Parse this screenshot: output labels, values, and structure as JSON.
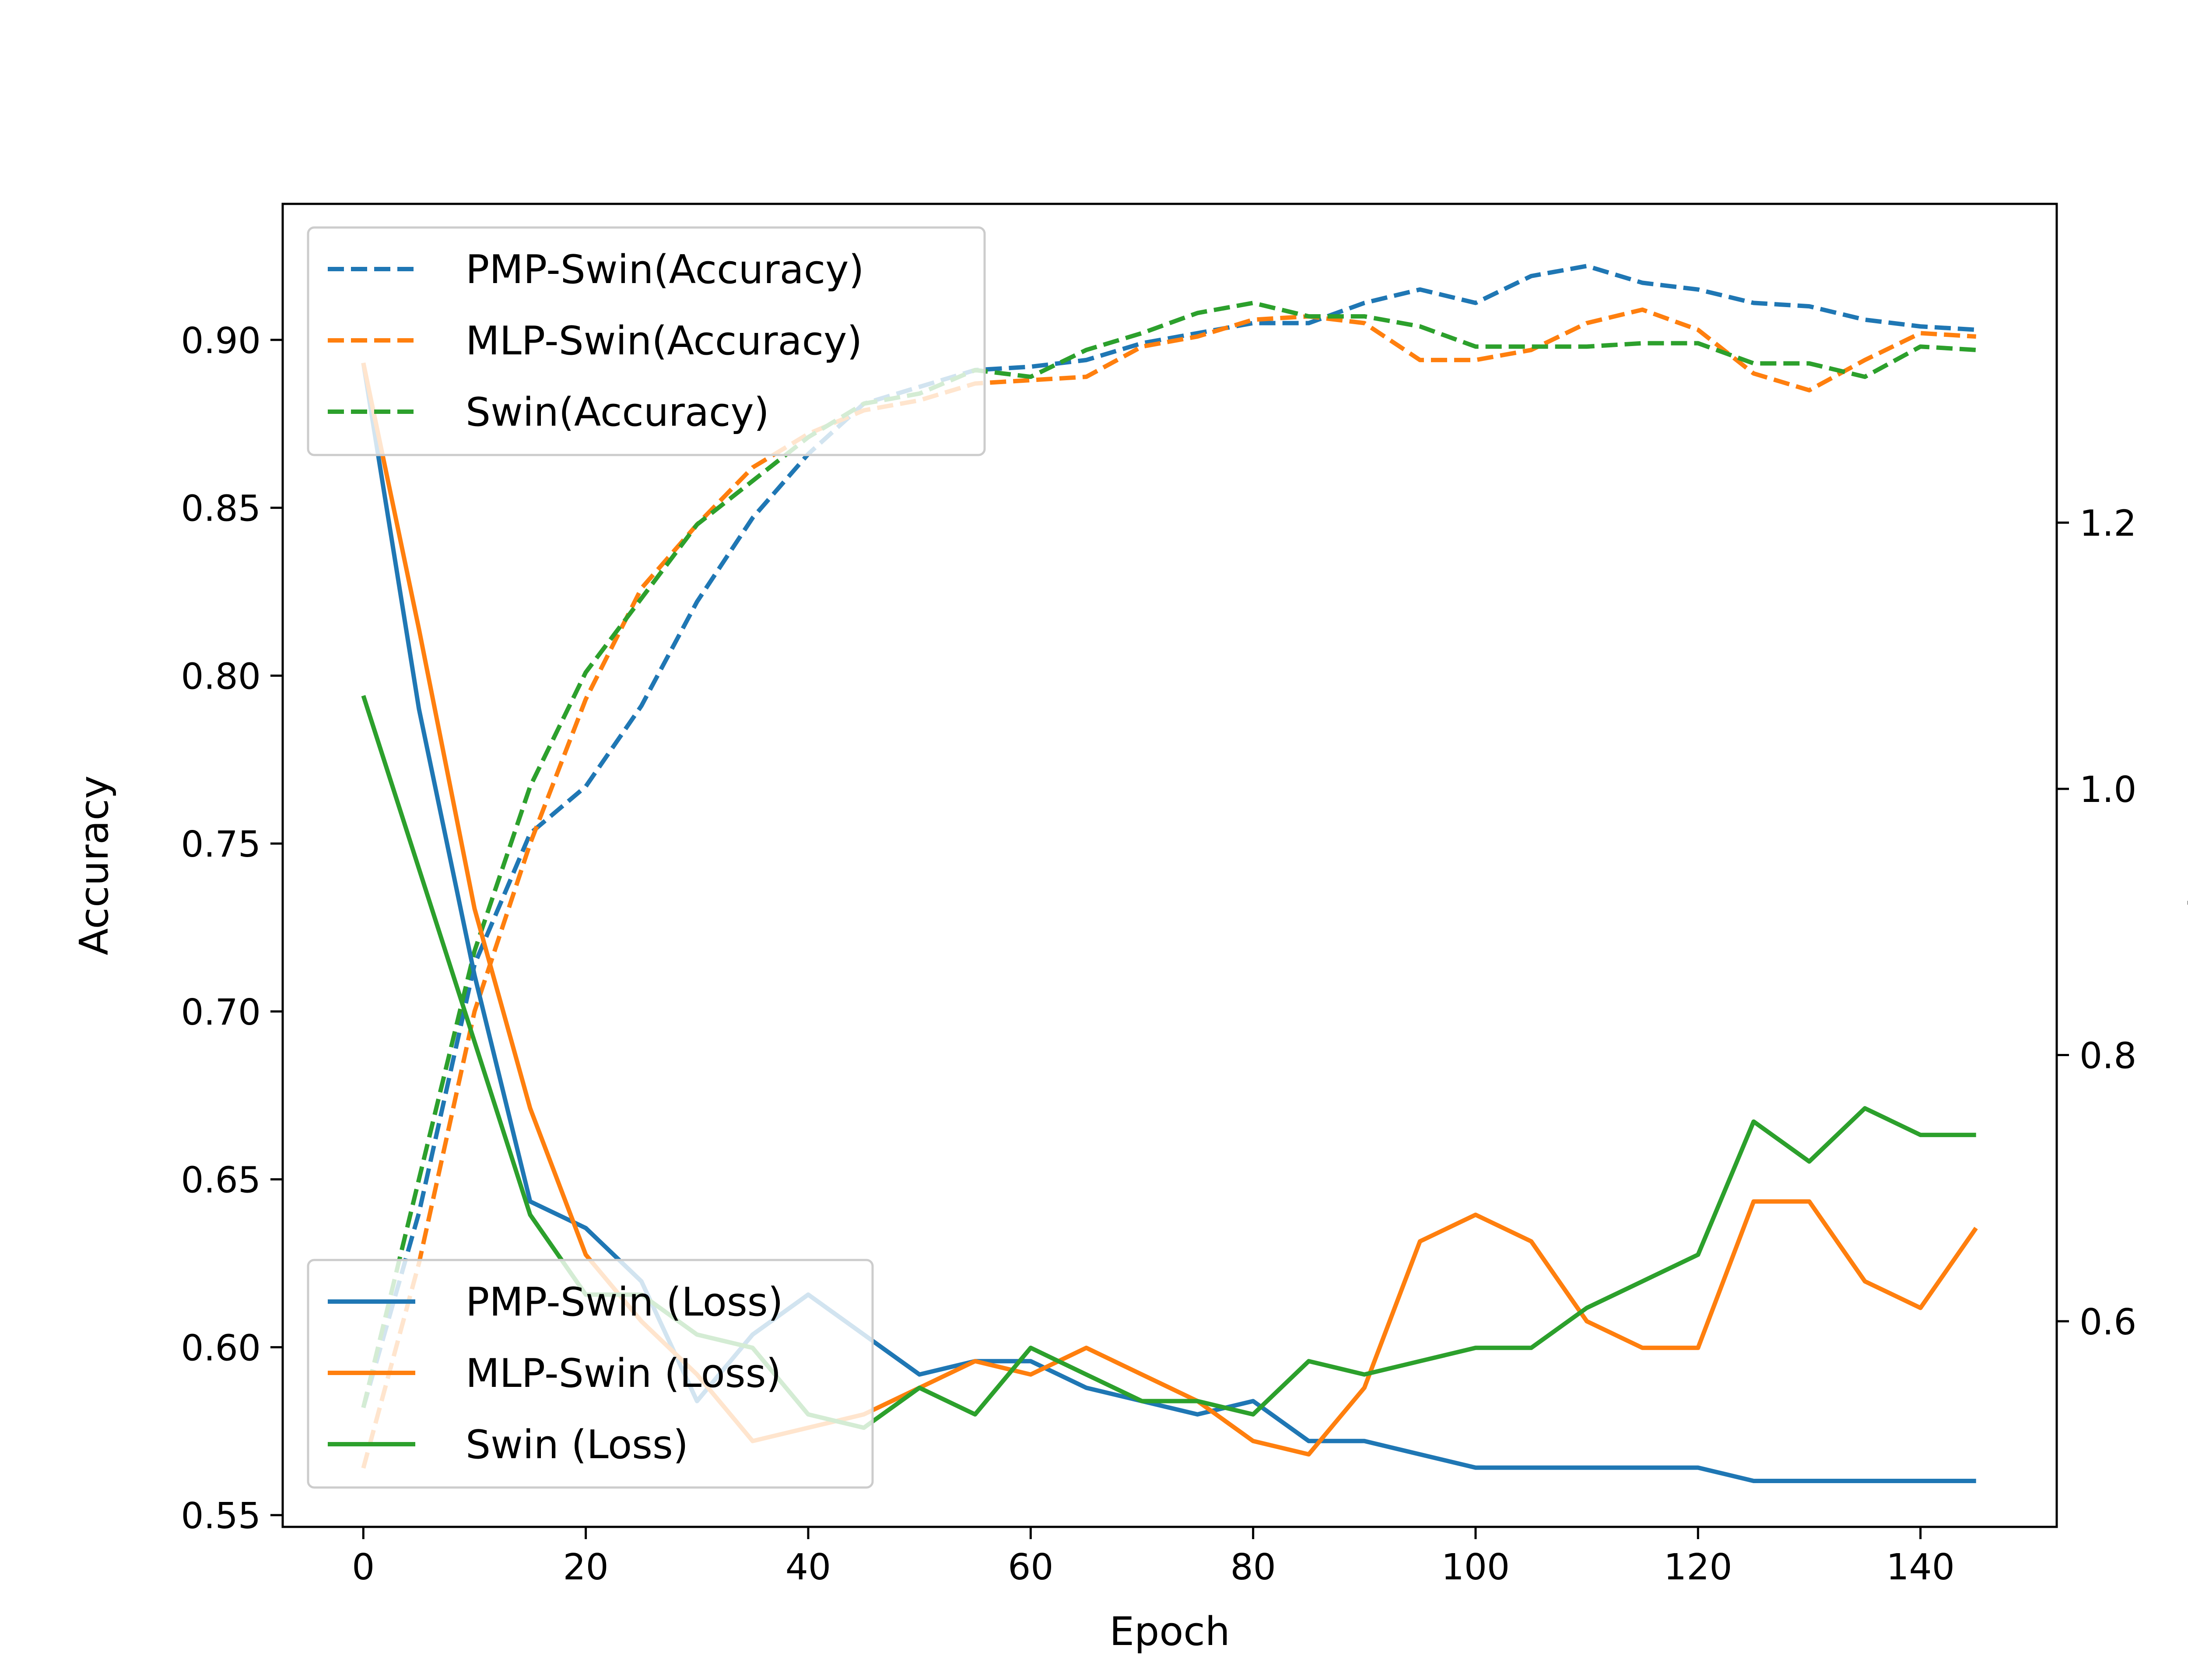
{
  "chart_data": {
    "type": "line",
    "xlabel": "Epoch",
    "ylabel_left": "Accuracy",
    "ylabel_right": "Loss",
    "xlim": [
      -7.25,
      152.25
    ],
    "ylim_left": [
      0.5465,
      0.9405
    ],
    "ylim_right": [
      0.4455,
      1.4395
    ],
    "xticks": [
      0,
      20,
      40,
      60,
      80,
      100,
      120,
      140
    ],
    "yticks_left": [
      0.55,
      0.6,
      0.65,
      0.7,
      0.75,
      0.8,
      0.85,
      0.9
    ],
    "yticks_right": [
      0.6,
      0.8,
      1.0,
      1.2
    ],
    "grid": false,
    "legend_accuracy_position": "upper left",
    "legend_loss_position": "lower left",
    "x": [
      0,
      5,
      10,
      15,
      20,
      25,
      30,
      35,
      40,
      45,
      50,
      55,
      60,
      65,
      70,
      75,
      80,
      85,
      90,
      95,
      100,
      105,
      110,
      115,
      120,
      125,
      130,
      135,
      140,
      145
    ],
    "series": [
      {
        "name": "PMP-Swin(Accuracy)",
        "axis": "left",
        "style": "dashed",
        "color": "#1f77b4",
        "values": [
          0.582,
          0.64,
          0.714,
          0.753,
          0.767,
          0.791,
          0.822,
          0.847,
          0.866,
          0.881,
          0.886,
          0.891,
          0.892,
          0.894,
          0.899,
          0.902,
          0.905,
          0.905,
          0.911,
          0.915,
          0.911,
          0.919,
          0.922,
          0.917,
          0.915,
          0.911,
          0.91,
          0.906,
          0.904,
          0.903
        ]
      },
      {
        "name": "MLP-Swin(Accuracy)",
        "axis": "left",
        "style": "dashed",
        "color": "#ff7f0e",
        "values": [
          0.564,
          0.625,
          0.7,
          0.75,
          0.793,
          0.826,
          0.845,
          0.862,
          0.872,
          0.879,
          0.882,
          0.887,
          0.888,
          0.889,
          0.898,
          0.901,
          0.906,
          0.907,
          0.905,
          0.894,
          0.894,
          0.897,
          0.905,
          0.909,
          0.903,
          0.89,
          0.885,
          0.894,
          0.902,
          0.901
        ]
      },
      {
        "name": "Swin(Accuracy)",
        "axis": "left",
        "style": "dashed",
        "color": "#2ca02c",
        "values": [
          0.582,
          0.65,
          0.718,
          0.767,
          0.801,
          0.823,
          0.845,
          0.858,
          0.871,
          0.881,
          0.884,
          0.891,
          0.889,
          0.897,
          0.902,
          0.908,
          0.911,
          0.907,
          0.907,
          0.904,
          0.898,
          0.898,
          0.898,
          0.899,
          0.899,
          0.893,
          0.893,
          0.889,
          0.898,
          0.897
        ]
      },
      {
        "name": "PMP-Swin (Loss)",
        "axis": "right",
        "style": "solid",
        "color": "#1f77b4",
        "values": [
          1.32,
          1.06,
          0.86,
          0.69,
          0.67,
          0.63,
          0.54,
          0.59,
          0.62,
          0.59,
          0.56,
          0.57,
          0.57,
          0.55,
          0.54,
          0.53,
          0.54,
          0.51,
          0.51,
          0.5,
          0.49,
          0.49,
          0.49,
          0.49,
          0.49,
          0.48,
          0.48,
          0.48,
          0.48,
          0.48
        ]
      },
      {
        "name": "MLP-Swin (Loss)",
        "axis": "right",
        "style": "solid",
        "color": "#ff7f0e",
        "values": [
          1.32,
          1.12,
          0.91,
          0.76,
          0.65,
          0.6,
          0.56,
          0.51,
          0.52,
          0.53,
          0.55,
          0.57,
          0.56,
          0.58,
          0.56,
          0.54,
          0.51,
          0.5,
          0.55,
          0.66,
          0.68,
          0.66,
          0.6,
          0.58,
          0.58,
          0.69,
          0.69,
          0.63,
          0.61,
          0.67
        ]
      },
      {
        "name": "Swin (Loss)",
        "axis": "right",
        "style": "solid",
        "color": "#2ca02c",
        "values": [
          1.07,
          0.94,
          0.81,
          0.68,
          0.62,
          0.62,
          0.59,
          0.58,
          0.53,
          0.52,
          0.55,
          0.53,
          0.58,
          0.56,
          0.54,
          0.54,
          0.53,
          0.57,
          0.56,
          0.57,
          0.58,
          0.58,
          0.61,
          0.63,
          0.65,
          0.75,
          0.72,
          0.76,
          0.74,
          0.74
        ]
      }
    ]
  }
}
